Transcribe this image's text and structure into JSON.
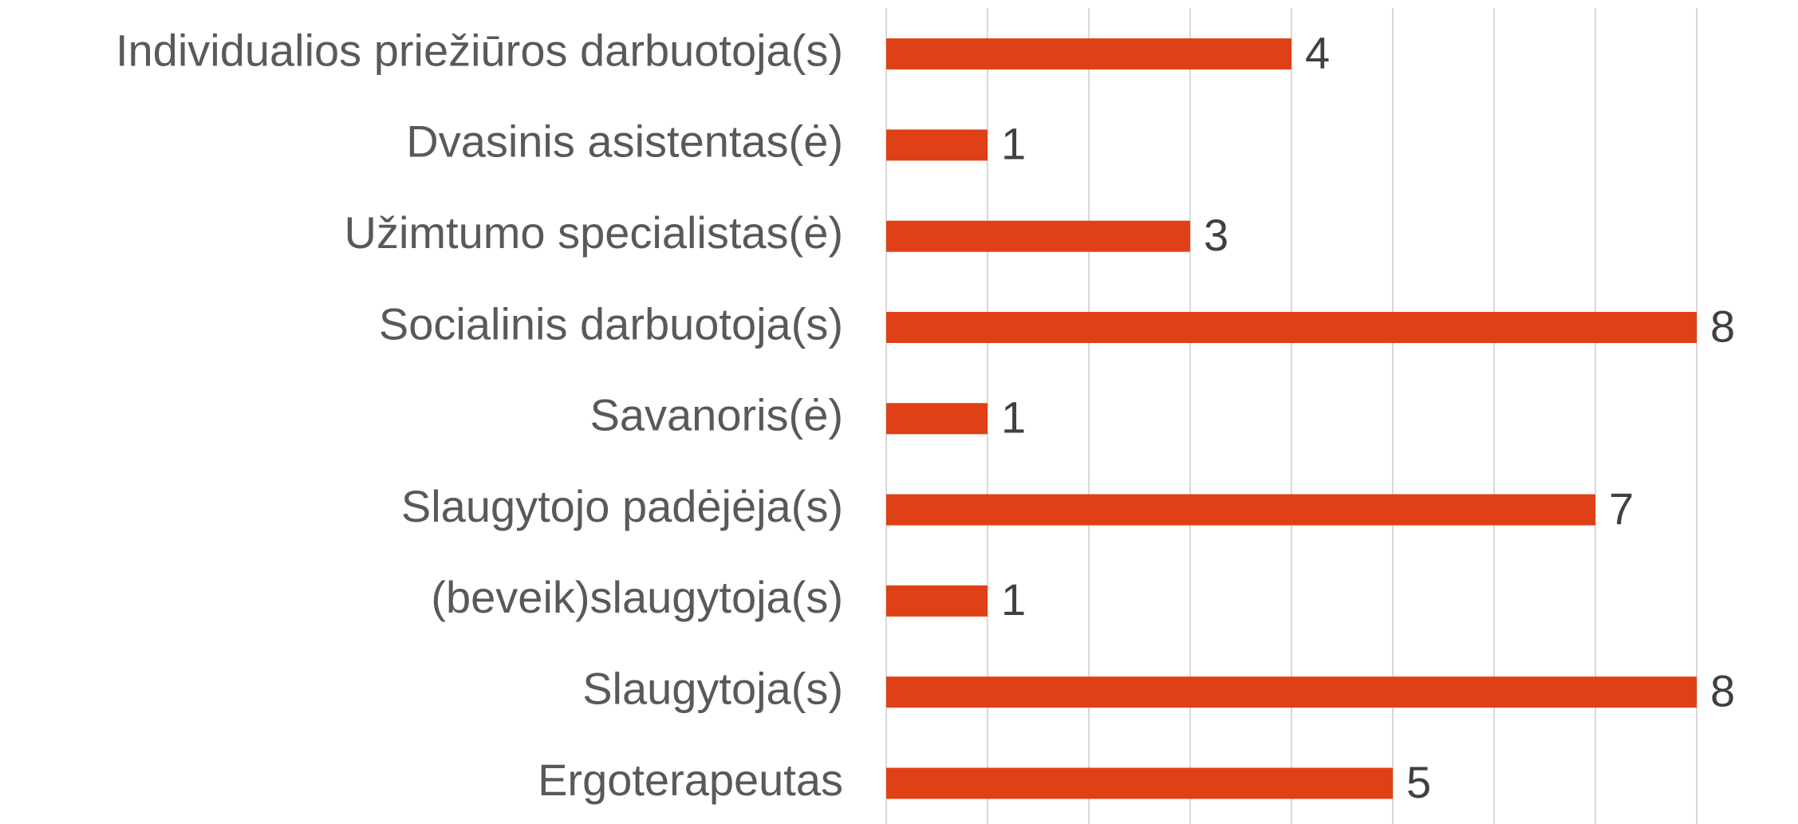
{
  "chart_data": {
    "type": "hbar",
    "categories": [
      "Individualios priežiūros darbuotoja(s)",
      "Dvasinis asistentas(ė)",
      "Užimtumo specialistas(ė)",
      "Socialinis darbuotoja(s)",
      "Savanoris(ė)",
      "Slaugytojo padėjėja(s)",
      "(beveik)slaugytoja(s)",
      "Slaugytoja(s)",
      "Ergoterapeutas"
    ],
    "values": [
      4,
      1,
      3,
      8,
      1,
      7,
      1,
      8,
      5
    ],
    "color": "#e04016",
    "xlim": [
      0,
      9
    ],
    "xticks": [
      0,
      1,
      2,
      3,
      4,
      5,
      6,
      7,
      8
    ],
    "grid": true
  }
}
